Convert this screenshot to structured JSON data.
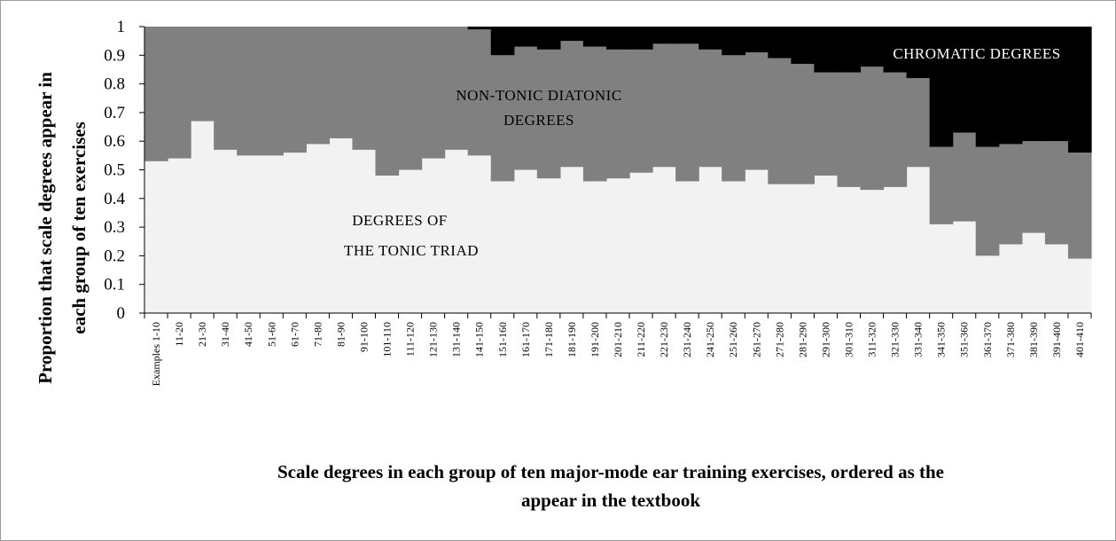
{
  "chart_data": {
    "type": "area",
    "stacked": true,
    "step": true,
    "categories": [
      "Examples 1-10",
      "11-20",
      "21-30",
      "31-40",
      "41-50",
      "51-60",
      "61-70",
      "71-80",
      "81-90",
      "91-100",
      "101-110",
      "111-120",
      "121-130",
      "131-140",
      "141-150",
      "151-160",
      "161-170",
      "171-180",
      "181-190",
      "191-200",
      "201-210",
      "211-220",
      "221-230",
      "231-240",
      "241-250",
      "251-260",
      "261-270",
      "271-280",
      "281-290",
      "291-300",
      "301-310",
      "311-320",
      "321-330",
      "331-340",
      "341-350",
      "351-360",
      "361-370",
      "371-380",
      "381-390",
      "391-400",
      "401-410"
    ],
    "series": [
      {
        "key": "tonic",
        "color": "#f2f2f2",
        "values": [
          0.53,
          0.54,
          0.67,
          0.57,
          0.55,
          0.55,
          0.56,
          0.59,
          0.61,
          0.57,
          0.48,
          0.5,
          0.54,
          0.57,
          0.55,
          0.46,
          0.5,
          0.47,
          0.51,
          0.46,
          0.47,
          0.49,
          0.51,
          0.46,
          0.51,
          0.46,
          0.5,
          0.45,
          0.45,
          0.48,
          0.44,
          0.43,
          0.44,
          0.51,
          0.31,
          0.32,
          0.2,
          0.24,
          0.28,
          0.24,
          0.19
        ]
      },
      {
        "key": "nontonic",
        "color": "#808080",
        "values": [
          0.47,
          0.46,
          0.33,
          0.43,
          0.45,
          0.45,
          0.44,
          0.41,
          0.39,
          0.43,
          0.52,
          0.5,
          0.46,
          0.43,
          0.44,
          0.44,
          0.43,
          0.45,
          0.44,
          0.47,
          0.45,
          0.43,
          0.43,
          0.48,
          0.41,
          0.44,
          0.41,
          0.44,
          0.42,
          0.36,
          0.4,
          0.43,
          0.4,
          0.31,
          0.27,
          0.31,
          0.38,
          0.35,
          0.32,
          0.36,
          0.37
        ]
      },
      {
        "key": "chromatic",
        "color": "#000000",
        "values": [
          0,
          0,
          0,
          0,
          0,
          0,
          0,
          0,
          0,
          0,
          0,
          0,
          0,
          0,
          0.01,
          0.1,
          0.07,
          0.08,
          0.05,
          0.07,
          0.08,
          0.08,
          0.06,
          0.06,
          0.08,
          0.1,
          0.09,
          0.11,
          0.13,
          0.16,
          0.16,
          0.14,
          0.16,
          0.18,
          0.42,
          0.37,
          0.42,
          0.41,
          0.4,
          0.4,
          0.44
        ]
      }
    ],
    "annotations": {
      "tonic_line1": "DEGREES OF",
      "tonic_line2": "THE TONIC TRIAD",
      "nontonic_line1": "NON-TONIC DIATONIC",
      "nontonic_line2": "DEGREES",
      "chromatic": "CHROMATIC DEGREES"
    },
    "ylim": [
      0,
      1
    ],
    "yticks": [
      "0",
      "0.1",
      "0.2",
      "0.3",
      "0.4",
      "0.5",
      "0.6",
      "0.7",
      "0.8",
      "0.9",
      "1"
    ],
    "ylabel_line1": "Proportion that scale degrees appear in",
    "ylabel_line2": "each group of ten exercises",
    "xlabel_line1": "Scale degrees in each group of ten major-mode ear training exercises, ordered as the",
    "xlabel_line2": "appear in the textbook",
    "grid": false,
    "legend": "none"
  }
}
